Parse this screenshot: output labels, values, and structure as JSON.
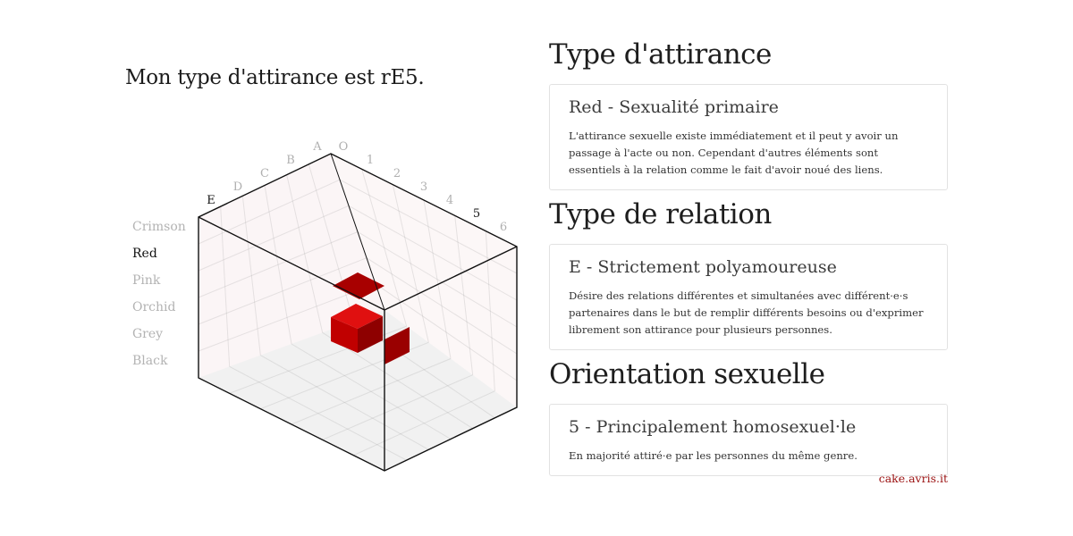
{
  "headline": "Mon type d'attirance est rE5.",
  "colors": [
    "Crimson",
    "Red",
    "Pink",
    "Orchid",
    "Grey",
    "Black"
  ],
  "active_color": "Red",
  "axis_letters": [
    "A",
    "B",
    "C",
    "D",
    "E"
  ],
  "axis_numbers": [
    "O",
    "1",
    "2",
    "3",
    "4",
    "5",
    "6"
  ],
  "active_letter": "E",
  "active_number": "5",
  "accent": "#9b1111",
  "sections": [
    {
      "title": "Type d'attirance",
      "card_title": "Red - Sexualité primaire",
      "card_text": "L'attirance sexuelle existe immédiatement et il peut y avoir un passage à l'acte ou non. Cependant d'autres éléments sont essentiels à la relation comme le fait d'avoir noué des liens."
    },
    {
      "title": "Type de relation",
      "card_title": "E - Strictement polyamoureuse",
      "card_text": "Désire des relations différentes et simultanées avec différent·e·s partenaires dans le but de remplir différents besoins ou d'exprimer librement son attirance pour plusieurs personnes."
    },
    {
      "title": "Orientation sexuelle",
      "card_title": "5 - Principalement homosexuel·le",
      "card_text": "En majorité attiré·e par les personnes du même genre."
    }
  ],
  "credit": "cake.avris.it"
}
